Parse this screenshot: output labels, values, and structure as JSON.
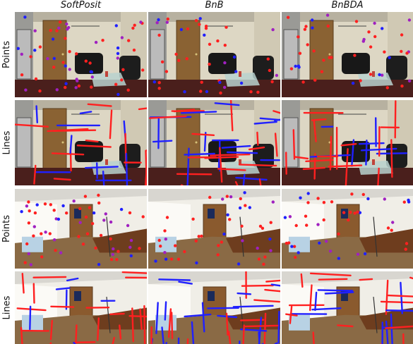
{
  "columns": [
    "SoftPosit",
    "BnB",
    "BnBDA"
  ],
  "rows": [
    {
      "label": "Points",
      "scene": "living-room",
      "overlay": "points"
    },
    {
      "label": "Lines",
      "scene": "living-room",
      "overlay": "lines"
    },
    {
      "label": "Points",
      "scene": "office",
      "overlay": "points"
    },
    {
      "label": "Lines",
      "scene": "office",
      "overlay": "lines"
    }
  ],
  "colors": {
    "red": "#ff2020",
    "blue": "#2020ff",
    "magenta": "#a020c0"
  }
}
